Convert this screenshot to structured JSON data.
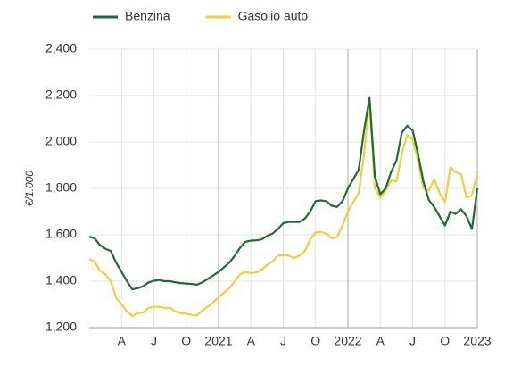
{
  "chart_data": {
    "type": "line",
    "y_axis_label": "€/1.000",
    "categories": [
      null,
      null,
      null,
      null,
      null,
      null,
      "A",
      null,
      null,
      null,
      null,
      null,
      "J",
      null,
      null,
      null,
      null,
      null,
      "O",
      null,
      null,
      null,
      null,
      null,
      "2021",
      null,
      null,
      null,
      null,
      null,
      "A",
      null,
      null,
      null,
      null,
      null,
      "J",
      null,
      null,
      null,
      null,
      null,
      "O",
      null,
      null,
      null,
      null,
      null,
      "2022",
      null,
      null,
      null,
      null,
      null,
      "A",
      null,
      null,
      null,
      null,
      null,
      "J",
      null,
      null,
      null,
      null,
      null,
      "O",
      null,
      null,
      null,
      null,
      null,
      "2023"
    ],
    "series": [
      {
        "name": "Benzina",
        "color": "#1e6b35",
        "values": [
          1592,
          1585,
          1555,
          1540,
          1530,
          1480,
          1440,
          1400,
          1365,
          1370,
          1378,
          1395,
          1402,
          1405,
          1400,
          1400,
          1395,
          1392,
          1390,
          1388,
          1385,
          1395,
          1410,
          1425,
          1440,
          1460,
          1480,
          1510,
          1545,
          1570,
          1575,
          1576,
          1580,
          1595,
          1605,
          1625,
          1650,
          1655,
          1655,
          1655,
          1670,
          1700,
          1745,
          1748,
          1745,
          1725,
          1720,
          1745,
          1800,
          1840,
          1880,
          2050,
          2190,
          1850,
          1775,
          1800,
          1870,
          1920,
          2040,
          2070,
          2050,
          1950,
          1830,
          1750,
          1720,
          1680,
          1640,
          1700,
          1690,
          1710,
          1680,
          1625,
          1800
        ]
      },
      {
        "name": "Gasolio auto",
        "color": "#f0cf3a",
        "values": [
          1495,
          1485,
          1445,
          1430,
          1400,
          1330,
          1300,
          1270,
          1250,
          1262,
          1265,
          1285,
          1290,
          1290,
          1285,
          1285,
          1270,
          1262,
          1260,
          1255,
          1252,
          1275,
          1290,
          1310,
          1330,
          1350,
          1370,
          1400,
          1430,
          1440,
          1435,
          1438,
          1450,
          1470,
          1485,
          1510,
          1512,
          1510,
          1500,
          1510,
          1530,
          1580,
          1610,
          1612,
          1605,
          1585,
          1590,
          1640,
          1700,
          1740,
          1780,
          1950,
          2180,
          1800,
          1760,
          1790,
          1835,
          1830,
          1950,
          2030,
          2010,
          1920,
          1800,
          1790,
          1840,
          1780,
          1740,
          1890,
          1870,
          1860,
          1760,
          1770,
          1870
        ]
      }
    ],
    "ylim": [
      1200,
      2400
    ],
    "yticks": [
      {
        "value": 1200,
        "label": "1,200"
      },
      {
        "value": 1400,
        "label": "1,400"
      },
      {
        "value": 1600,
        "label": "1,600"
      },
      {
        "value": 1800,
        "label": "1,800"
      },
      {
        "value": 2000,
        "label": "2,000"
      },
      {
        "value": 2200,
        "label": "2,200"
      },
      {
        "value": 2400,
        "label": "2,400"
      }
    ],
    "grid": true,
    "legend": "top"
  }
}
